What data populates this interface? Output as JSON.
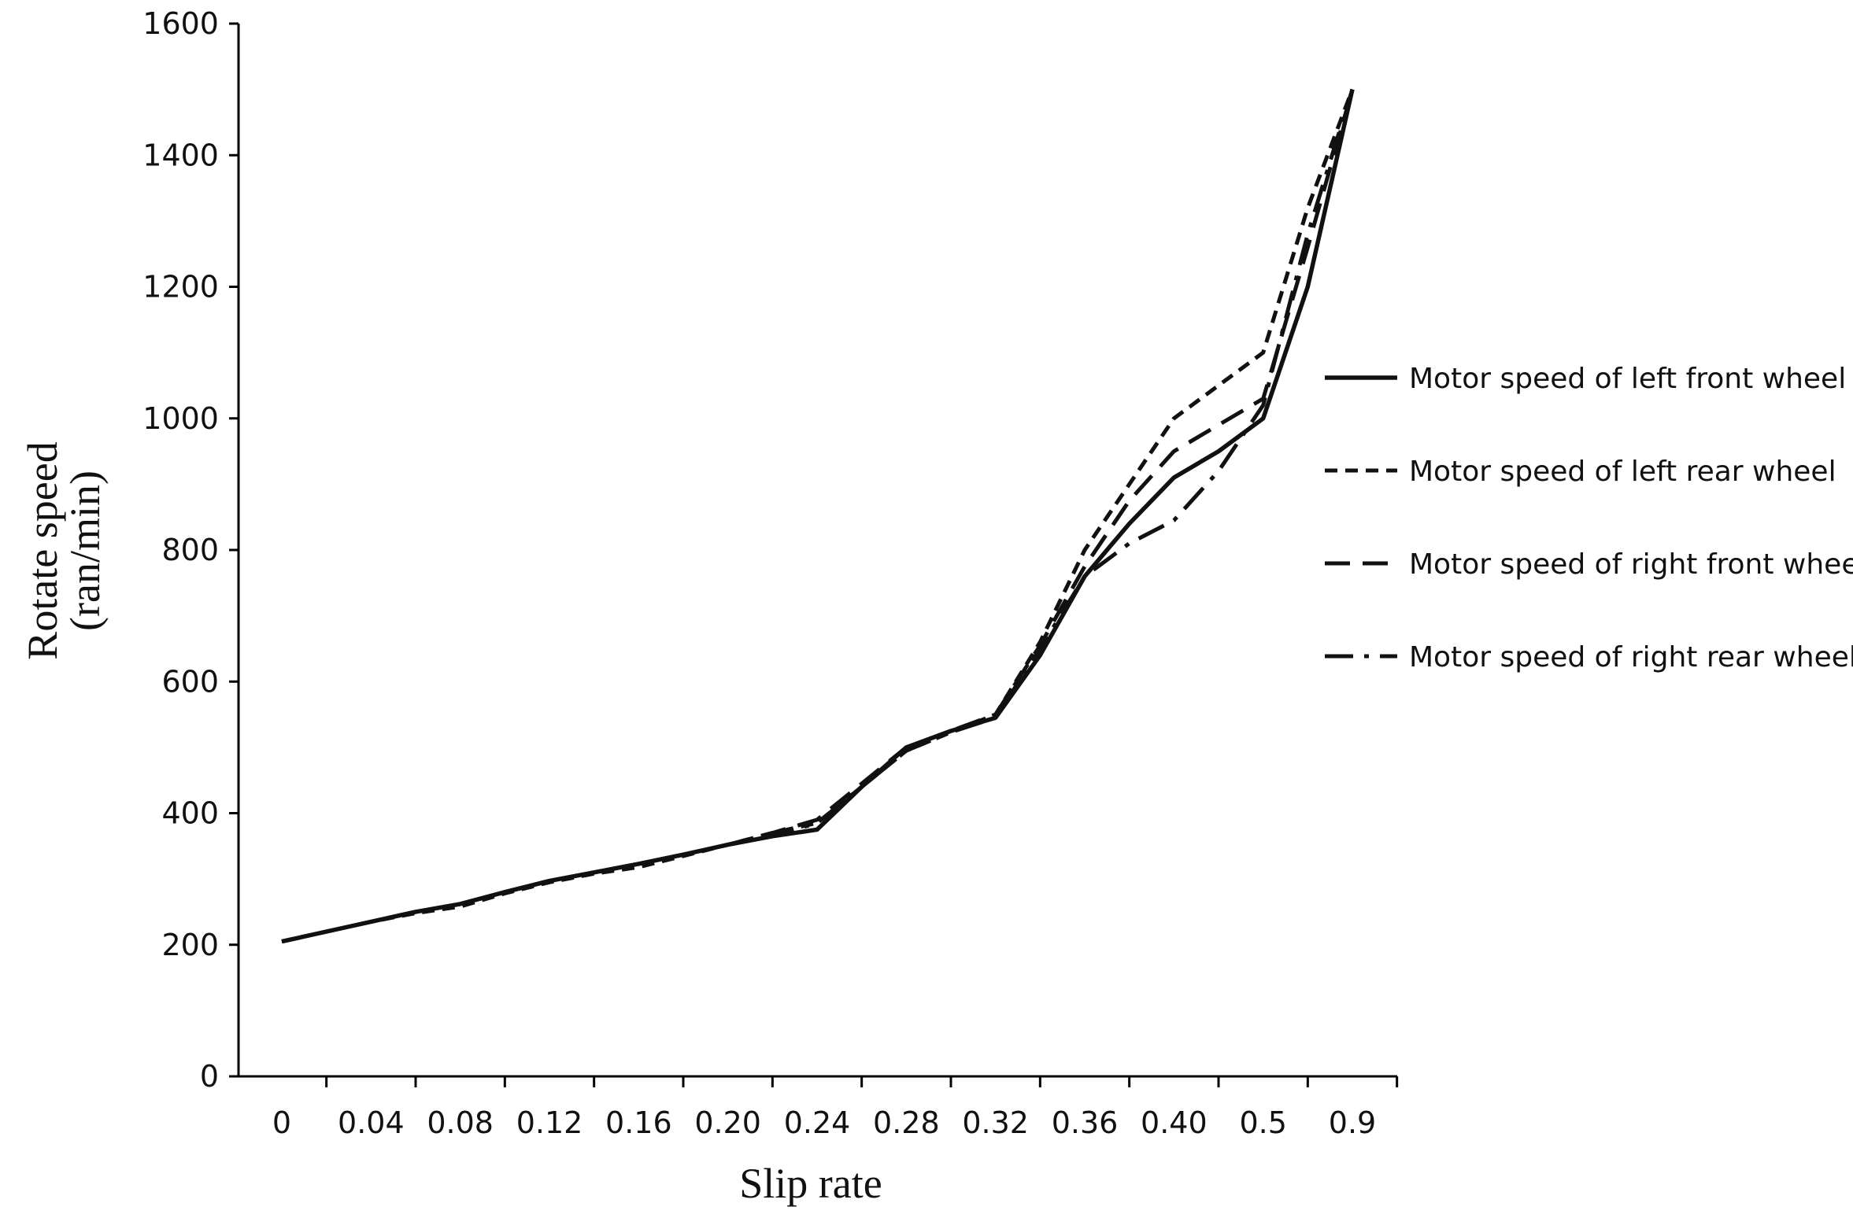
{
  "chart_data": {
    "type": "line",
    "title": "",
    "xlabel": "Slip rate",
    "ylabel_line1": "Rotate speed",
    "ylabel_line2": "(ran/min)",
    "categories": [
      "0",
      "0.04",
      "0.08",
      "0.12",
      "0.16",
      "0.20",
      "0.24",
      "0.28",
      "0.32",
      "0.36",
      "0.40",
      "0.5",
      "0.9"
    ],
    "y_ticks": [
      0,
      200,
      400,
      600,
      800,
      1000,
      1200,
      1400,
      1600
    ],
    "ylim": [
      0,
      1600
    ],
    "grid": false,
    "legend_position": "right",
    "series": [
      {
        "name": "Motor speed of left front wheel",
        "style": "solid",
        "x": [
          0,
          0.5,
          1,
          1.5,
          2,
          2.5,
          3,
          3.5,
          4,
          4.5,
          5,
          5.5,
          6,
          6.5,
          7,
          7.5,
          8,
          8.5,
          9,
          9.5,
          10,
          10.5,
          11,
          11.5,
          12
        ],
        "values": [
          205,
          220,
          235,
          250,
          262,
          280,
          297,
          310,
          323,
          337,
          352,
          365,
          375,
          440,
          500,
          525,
          545,
          640,
          760,
          840,
          910,
          950,
          1000,
          1200,
          1500
        ]
      },
      {
        "name": "Motor speed of left rear wheel",
        "style": "dashed",
        "x": [
          0,
          0.5,
          1,
          1.5,
          2,
          2.5,
          3,
          3.5,
          4,
          4.5,
          5,
          5.5,
          6,
          6.5,
          7,
          7.5,
          8,
          8.5,
          9,
          9.5,
          10,
          10.5,
          11,
          11.5,
          12
        ],
        "values": [
          205,
          220,
          235,
          248,
          258,
          278,
          295,
          308,
          318,
          335,
          352,
          370,
          385,
          440,
          495,
          523,
          550,
          660,
          800,
          900,
          1000,
          1050,
          1100,
          1320,
          1500
        ]
      },
      {
        "name": "Motor speed of right front wheel",
        "style": "long-dashed",
        "x": [
          0,
          0.5,
          1,
          1.5,
          2,
          2.5,
          3,
          3.5,
          4,
          4.5,
          5,
          5.5,
          6,
          6.5,
          7,
          7.5,
          8,
          8.5,
          9,
          9.5,
          10,
          10.5,
          11,
          11.5,
          12
        ],
        "values": [
          205,
          220,
          235,
          250,
          262,
          280,
          297,
          310,
          323,
          337,
          352,
          370,
          390,
          445,
          500,
          525,
          550,
          655,
          775,
          875,
          950,
          990,
          1030,
          1260,
          1500
        ]
      },
      {
        "name": "Motor speed of right rear wheel",
        "style": "dash-dot",
        "x": [
          0,
          0.5,
          1,
          1.5,
          2,
          2.5,
          3,
          3.5,
          4,
          4.5,
          5,
          5.5,
          6,
          6.5,
          7,
          7.5,
          8,
          8.5,
          9,
          9.5,
          10,
          10.5,
          11,
          11.5,
          12
        ],
        "values": [
          205,
          220,
          235,
          250,
          262,
          280,
          297,
          310,
          323,
          337,
          352,
          365,
          385,
          440,
          495,
          523,
          545,
          650,
          760,
          810,
          845,
          920,
          1020,
          1280,
          1500
        ]
      }
    ]
  }
}
